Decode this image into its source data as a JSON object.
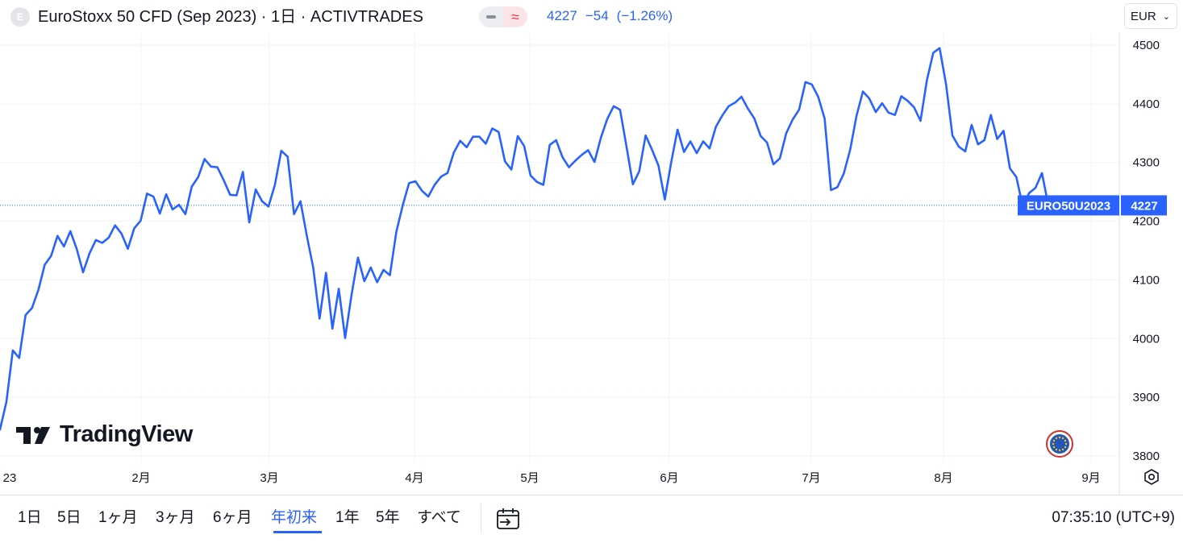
{
  "header": {
    "symbol_badge": "E",
    "title": "EuroStoxx 50 CFD (Sep 2023) · 1日 · ACTIVTRADES",
    "last": "4227",
    "change": "−54",
    "change_pct": "(−1.26%)",
    "currency": "EUR"
  },
  "colors": {
    "line": "#2962ff",
    "label_bg": "#2962ff",
    "grid": "#f0f3fa",
    "text": "#131722"
  },
  "chart_data": {
    "type": "line",
    "title": "",
    "symbol_label": "EURO50U2023",
    "last_value": 4227,
    "y_ticks": [
      3800,
      3900,
      4000,
      4100,
      4200,
      4300,
      4400,
      4500
    ],
    "ylim": [
      3789,
      4522
    ],
    "x_tick_labels": [
      "23",
      "2月",
      "3月",
      "4月",
      "5月",
      "6月",
      "7月",
      "8月",
      "9月"
    ],
    "series": [
      {
        "values": [
          3845,
          3892,
          3980,
          3967,
          4040,
          4052,
          4083,
          4126,
          4141,
          4175,
          4157,
          4183,
          4153,
          4113,
          4145,
          4168,
          4163,
          4172,
          4193,
          4179,
          4153,
          4188,
          4201,
          4247,
          4242,
          4213,
          4246,
          4220,
          4228,
          4212,
          4259,
          4275,
          4306,
          4293,
          4292,
          4270,
          4245,
          4244,
          4284,
          4198,
          4254,
          4234,
          4225,
          4262,
          4320,
          4310,
          4212,
          4234,
          4175,
          4121,
          4034,
          4112,
          4017,
          4085,
          4001,
          4075,
          4138,
          4098,
          4121,
          4096,
          4117,
          4108,
          4182,
          4227,
          4265,
          4268,
          4252,
          4242,
          4262,
          4276,
          4282,
          4317,
          4337,
          4326,
          4344,
          4344,
          4332,
          4358,
          4352,
          4302,
          4288,
          4345,
          4328,
          4278,
          4267,
          4262,
          4330,
          4338,
          4309,
          4292,
          4303,
          4313,
          4321,
          4301,
          4342,
          4374,
          4396,
          4390,
          4328,
          4263,
          4285,
          4346,
          4322,
          4295,
          4237,
          4300,
          4356,
          4318,
          4336,
          4316,
          4336,
          4324,
          4361,
          4380,
          4396,
          4402,
          4412,
          4392,
          4375,
          4345,
          4334,
          4297,
          4307,
          4350,
          4373,
          4390,
          4437,
          4433,
          4412,
          4375,
          4253,
          4258,
          4281,
          4322,
          4380,
          4421,
          4409,
          4386,
          4401,
          4385,
          4381,
          4413,
          4405,
          4394,
          4371,
          4440,
          4487,
          4495,
          4433,
          4346,
          4327,
          4319,
          4364,
          4331,
          4338,
          4381,
          4340,
          4354,
          4290,
          4275,
          4225,
          4248,
          4257,
          4282,
          4227
        ]
      }
    ]
  },
  "brand": {
    "name": "TradingView"
  },
  "bottom_bar": {
    "ranges": [
      "1日",
      "5日",
      "1ヶ月",
      "3ヶ月",
      "6ヶ月",
      "年初来",
      "1年",
      "5年",
      "すべて"
    ],
    "active_range": "年初来",
    "time": "07:35:10 (UTC+9)"
  }
}
